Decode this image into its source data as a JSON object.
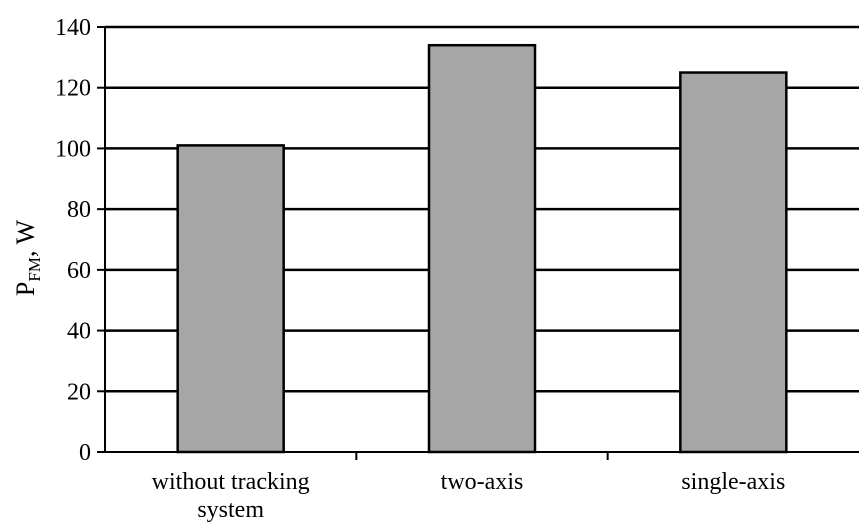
{
  "chart_data": {
    "type": "bar",
    "categories": [
      [
        "without tracking",
        "system"
      ],
      [
        "two-axis"
      ],
      [
        "single-axis"
      ]
    ],
    "values": [
      101,
      134,
      125
    ],
    "ylabel": {
      "main": "P",
      "sub": "FM",
      "rest": ", W"
    },
    "xlabel": "",
    "ylim": [
      0,
      140
    ],
    "yticks": [
      0,
      20,
      40,
      60,
      80,
      100,
      120,
      140
    ],
    "grid": true,
    "bar_color": "#a6a6a6",
    "bar_edge_color": "#000000",
    "grid_color": "#000000"
  }
}
